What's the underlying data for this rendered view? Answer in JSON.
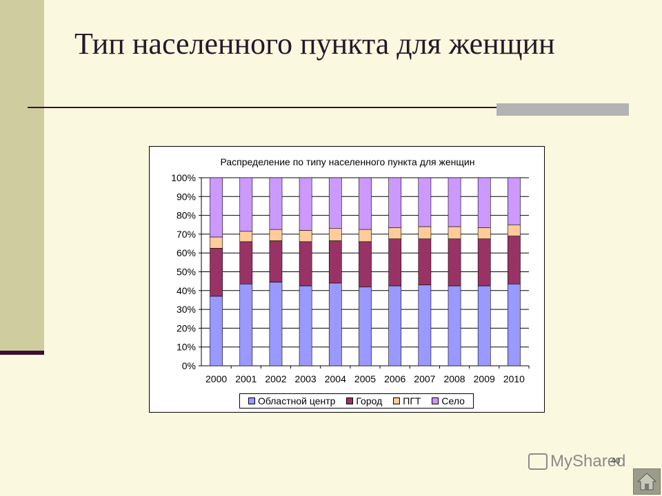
{
  "slide": {
    "title": "Тип населенного пункта для женщин",
    "page_number": "40",
    "watermark": "MyShared",
    "home_icon": "home-icon"
  },
  "colors": {
    "band": "#cfcda0",
    "accent": "#3a0f33",
    "grey_bar": "#b3b3b3"
  },
  "chart_data": {
    "type": "bar",
    "stacked": "percent",
    "title": "Распределение по типу населенного пункта для женщин",
    "categories": [
      "2000",
      "2001",
      "2002",
      "2003",
      "2004",
      "2005",
      "2006",
      "2007",
      "2008",
      "2009",
      "2010"
    ],
    "series": [
      {
        "name": "Областной центр",
        "color": "#9999ff",
        "values": [
          37,
          43.5,
          44.5,
          42.5,
          44,
          42,
          42.5,
          43,
          42.5,
          42.5,
          43.5
        ]
      },
      {
        "name": "Город",
        "color": "#993366",
        "values": [
          25.5,
          22.5,
          22,
          23.5,
          22.5,
          24,
          25,
          24.5,
          25,
          25,
          25.5
        ]
      },
      {
        "name": "ПГТ",
        "color": "#ffcc99",
        "values": [
          6,
          5.5,
          6,
          6,
          6.5,
          6.5,
          6,
          6.5,
          6.5,
          6,
          6
        ]
      },
      {
        "name": "Село",
        "color": "#cc99ff",
        "values": [
          31.5,
          28.5,
          27.5,
          28,
          27,
          27.5,
          26.5,
          26,
          26,
          26.5,
          25
        ]
      }
    ],
    "yticks": [
      "0%",
      "10%",
      "20%",
      "30%",
      "40%",
      "50%",
      "60%",
      "70%",
      "80%",
      "90%",
      "100%"
    ],
    "ylim": [
      0,
      100
    ],
    "grid": true,
    "legend_position": "bottom"
  }
}
